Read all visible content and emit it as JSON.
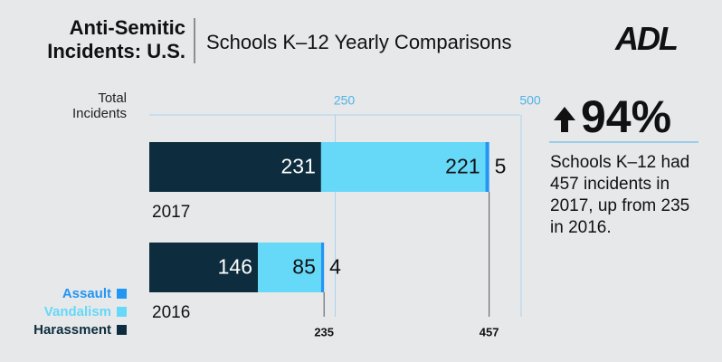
{
  "chart_data": {
    "type": "stacked-barh",
    "title": "Anti-Semitic Incidents: U.S.",
    "subtitle": "Schools K–12 Yearly Comparisons",
    "logo": "ADL",
    "x_label": "Total Incidents",
    "categories": [
      "2017",
      "2016"
    ],
    "series": [
      {
        "name": "Harassment",
        "color": "#0d2d3e",
        "values": [
          231,
          146
        ]
      },
      {
        "name": "Vandalism",
        "color": "#66d8f8",
        "values": [
          221,
          85
        ]
      },
      {
        "name": "Assault",
        "color": "#2196f3",
        "values": [
          5,
          4
        ]
      }
    ],
    "totals": [
      457,
      235
    ],
    "xlim": [
      0,
      500
    ],
    "xticks": [
      250,
      500
    ],
    "change": {
      "value": 94,
      "label": "94%"
    },
    "annotation": "Schools K–12 had 457 incidents in 2017, up from 235 in 2016."
  }
}
